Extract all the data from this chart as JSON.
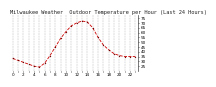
{
  "title": "Milwaukee Weather  Outdoor Temperature per Hour (Last 24 Hours)",
  "hours": [
    0,
    1,
    2,
    3,
    4,
    5,
    6,
    7,
    8,
    9,
    10,
    11,
    12,
    13,
    14,
    15,
    16,
    17,
    18,
    19,
    20,
    21,
    22,
    23
  ],
  "temps": [
    33,
    31,
    29,
    27,
    25,
    24,
    28,
    36,
    45,
    54,
    61,
    67,
    70,
    72,
    71,
    65,
    55,
    47,
    42,
    38,
    36,
    35,
    35,
    35
  ],
  "line_color": "#cc0000",
  "marker_color": "#660000",
  "bg_color": "#ffffff",
  "grid_color": "#999999",
  "ylim": [
    20,
    78
  ],
  "ytick_vals": [
    25,
    30,
    35,
    40,
    45,
    50,
    55,
    60,
    65,
    70,
    75
  ],
  "title_fontsize": 3.8,
  "tick_fontsize": 3.0,
  "title_color": "#222222"
}
